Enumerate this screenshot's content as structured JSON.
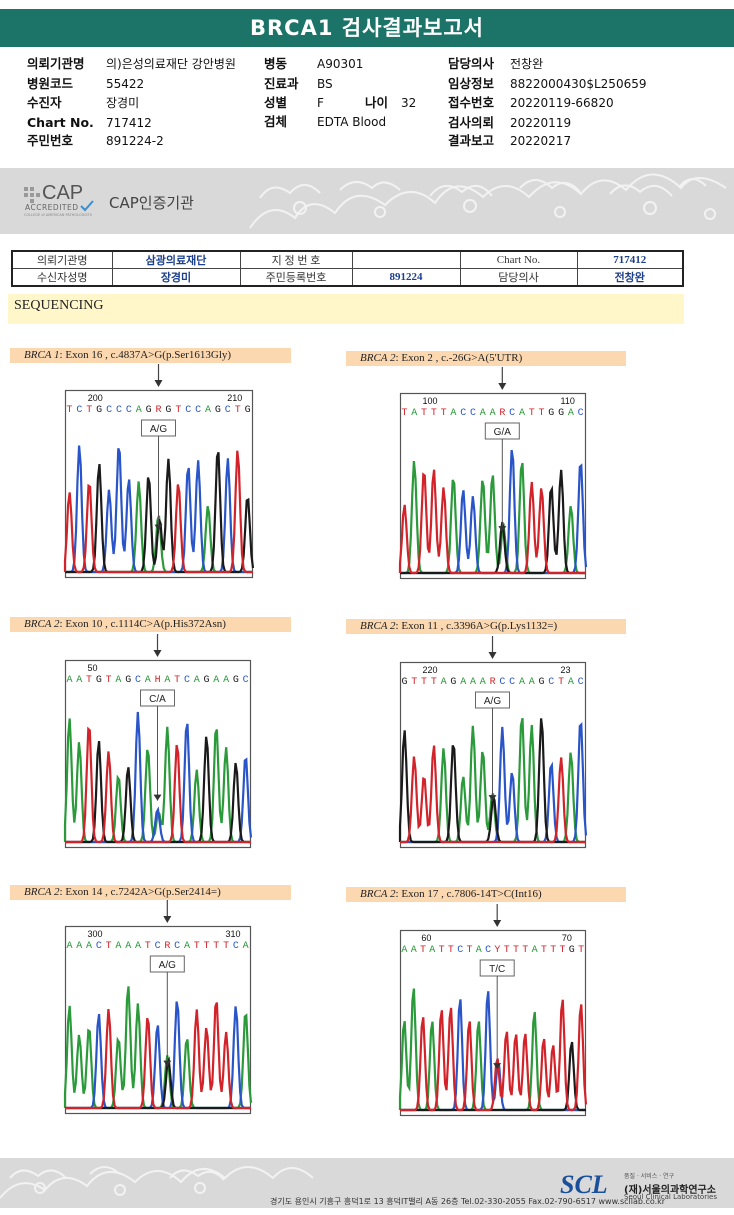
{
  "report": {
    "title": "BRCA1 검사결과보고서"
  },
  "header": {
    "col1": [
      {
        "label": "의뢰기관명",
        "value": "의)은성의료재단 강안병원"
      },
      {
        "label": "병원코드",
        "value": "55422"
      },
      {
        "label": "수진자",
        "value": "장경미"
      },
      {
        "label": "Chart No.",
        "value": "717412"
      },
      {
        "label": "주민번호",
        "value": "891224-2"
      }
    ],
    "col2": [
      {
        "label": "병동",
        "value": "A90301"
      },
      {
        "label": "진료과",
        "value": "BS"
      },
      {
        "label": "성별",
        "value": "F"
      },
      {
        "label": "검체",
        "value": "EDTA Blood"
      }
    ],
    "age": {
      "label": "나이",
      "value": "32"
    },
    "col3": [
      {
        "label": "담당의사",
        "value": "전창완"
      },
      {
        "label": "임상정보",
        "value": "8822000430$L250659"
      },
      {
        "label": "접수번호",
        "value": "20220119-66820"
      },
      {
        "label": "검사의뢰",
        "value": "20220119"
      },
      {
        "label": "결과보고",
        "value": "20220217"
      }
    ]
  },
  "cap": {
    "logo_big": "CAP",
    "logo_small": "ACCREDITED",
    "logo_tiny": "COLLEGE of AMERICAN PATHOLOGISTS",
    "label": "CAP인증기관"
  },
  "info_table": {
    "row1": [
      "의뢰기관명",
      "삼광의료재단",
      "지 정 번 호",
      "",
      "Chart No.",
      "717412"
    ],
    "row2": [
      "수신자성명",
      "장경미",
      "주민등록번호",
      "891224",
      "담당의사",
      "전창완"
    ]
  },
  "sequencing": {
    "heading": "SEQUENCING",
    "panels": [
      {
        "gene": "BRCA 1",
        "desc": ": Exon 16 , c.4837A>G(p.Ser1613Gly)",
        "seq": "TCTGCCCAGRGTCCAGCTG",
        "pos_left": "200",
        "pos_right": "210",
        "call": "A/G"
      },
      {
        "gene": "BRCA 2",
        "desc": ": Exon 2 , c.-26G>A(5'UTR)",
        "seq": "TATTTACCAARCATTGGAC",
        "pos_left": "100",
        "pos_right": "110",
        "call": "G/A"
      },
      {
        "gene": "BRCA 2",
        "desc": ": Exon 10 , c.1114C>A(p.His372Asn)",
        "seq": "AATGTAGCAHATCAGAAGC",
        "pos_left": "50",
        "pos_right": "",
        "call": "C/A"
      },
      {
        "gene": "BRCA 2",
        "desc": ": Exon 11 , c.3396A>G(p.Lys1132=)",
        "seq": "GTTTAGAAARCCAAGCTAC",
        "pos_left": "220",
        "pos_right": "23",
        "call": "A/G"
      },
      {
        "gene": "BRCA 2",
        "desc": ": Exon 14 , c.7242A>G(p.Ser2414=)",
        "seq": "AAACTAAATCRCATTTTCA",
        "pos_left": "300",
        "pos_right": "310",
        "call": "A/G"
      },
      {
        "gene": "BRCA 2",
        "desc": ": Exon 17 , c.7806-14T>C(Int16)",
        "seq": "AATATTCTACYTTTATTTGT",
        "pos_left": "60",
        "pos_right": "70",
        "call": "T/C"
      }
    ]
  },
  "footer": {
    "address": "경기도 용인시 기흥구 흥덕1로 13 흥덕IT밸리 A동 26층  Tel.02-330-2055  Fax.02-790-6517  www.scllab.co.kr",
    "logo": "SCL",
    "tag": "품질 · 서비스 · 연구",
    "name_ko": "(재)서울의과학연구소",
    "name_en": "Seoul Clinical Laboratories"
  },
  "colors": {
    "title_bg": "#1b7467",
    "A": "#2a9a3a",
    "C": "#2a55c8",
    "G": "#1a1a1a",
    "T": "#d2232a"
  }
}
